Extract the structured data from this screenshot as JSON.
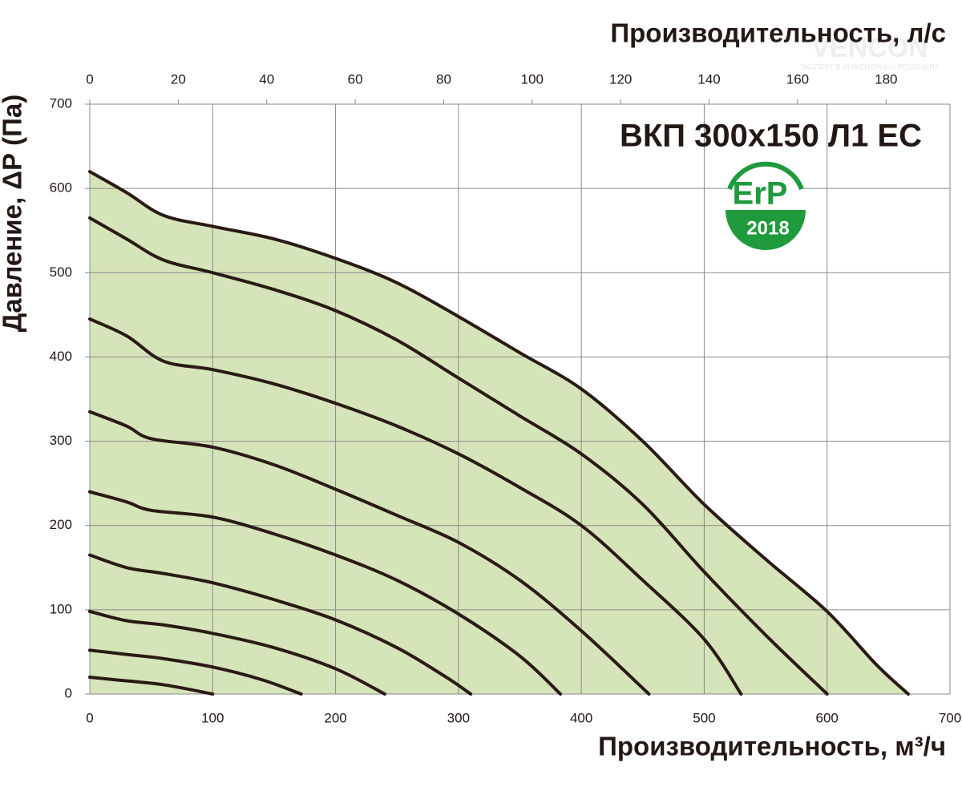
{
  "chart_data": {
    "type": "line",
    "title": "ВКП 300х150 Л1 ЕС",
    "badge": {
      "label": "ErP",
      "year": "2018"
    },
    "watermark": {
      "brand": "VENCON",
      "slogan": "ЭКСПЕРТ В ИНЖЕНЕРНЫХ РЕШЕНИЯХ"
    },
    "x_label": "Производительность, м³/ч",
    "x2_label": "Производительность, л/с",
    "y_label": "Давление, ΔР (Па)",
    "xlim": [
      0,
      700
    ],
    "xticks": [
      0,
      100,
      200,
      300,
      400,
      500,
      600,
      700
    ],
    "x2lim": [
      0,
      194.44
    ],
    "x2ticks": [
      0,
      20,
      40,
      60,
      80,
      100,
      120,
      140,
      160,
      180
    ],
    "ylim": [
      0,
      700
    ],
    "yticks": [
      0,
      100,
      200,
      300,
      400,
      500,
      600,
      700
    ],
    "grid": true,
    "fill_color": "#d6e4b9",
    "grid_color": "#8a8a8a",
    "series": [
      {
        "color": "#2a1a14",
        "x": [
          0,
          30,
          60,
          100,
          150,
          200,
          250,
          300,
          350,
          400,
          450,
          500,
          550,
          600,
          640,
          666
        ],
        "values": [
          620,
          595,
          568,
          555,
          540,
          517,
          488,
          448,
          405,
          362,
          300,
          225,
          160,
          98,
          35,
          0
        ]
      },
      {
        "color": "#2a1a14",
        "x": [
          0,
          30,
          60,
          100,
          150,
          200,
          250,
          300,
          350,
          400,
          450,
          500,
          550,
          600
        ],
        "values": [
          565,
          540,
          515,
          500,
          480,
          455,
          420,
          375,
          330,
          285,
          225,
          145,
          70,
          0
        ]
      },
      {
        "color": "#2a1a14",
        "x": [
          0,
          30,
          60,
          100,
          150,
          200,
          250,
          300,
          350,
          400,
          450,
          500,
          530
        ],
        "values": [
          445,
          425,
          395,
          385,
          368,
          345,
          318,
          285,
          245,
          200,
          135,
          65,
          0
        ]
      },
      {
        "color": "#2a1a14",
        "x": [
          0,
          30,
          50,
          100,
          150,
          200,
          250,
          300,
          350,
          400,
          455
        ],
        "values": [
          335,
          318,
          303,
          293,
          272,
          243,
          212,
          180,
          135,
          75,
          0
        ]
      },
      {
        "color": "#2a1a14",
        "x": [
          0,
          30,
          50,
          100,
          150,
          200,
          250,
          300,
          350,
          383
        ],
        "values": [
          240,
          228,
          218,
          210,
          190,
          165,
          135,
          95,
          45,
          0
        ]
      },
      {
        "color": "#2a1a14",
        "x": [
          0,
          30,
          60,
          100,
          150,
          200,
          250,
          290,
          310
        ],
        "values": [
          165,
          150,
          143,
          132,
          112,
          88,
          55,
          20,
          0
        ]
      },
      {
        "color": "#2a1a14",
        "x": [
          0,
          30,
          60,
          100,
          150,
          200,
          240
        ],
        "values": [
          98,
          87,
          82,
          72,
          55,
          30,
          0
        ]
      },
      {
        "color": "#2a1a14",
        "x": [
          0,
          30,
          60,
          100,
          140,
          172
        ],
        "values": [
          52,
          47,
          42,
          32,
          17,
          0
        ]
      },
      {
        "color": "#2a1a14",
        "x": [
          0,
          20,
          60,
          100
        ],
        "values": [
          20,
          17,
          11,
          0
        ]
      }
    ]
  }
}
